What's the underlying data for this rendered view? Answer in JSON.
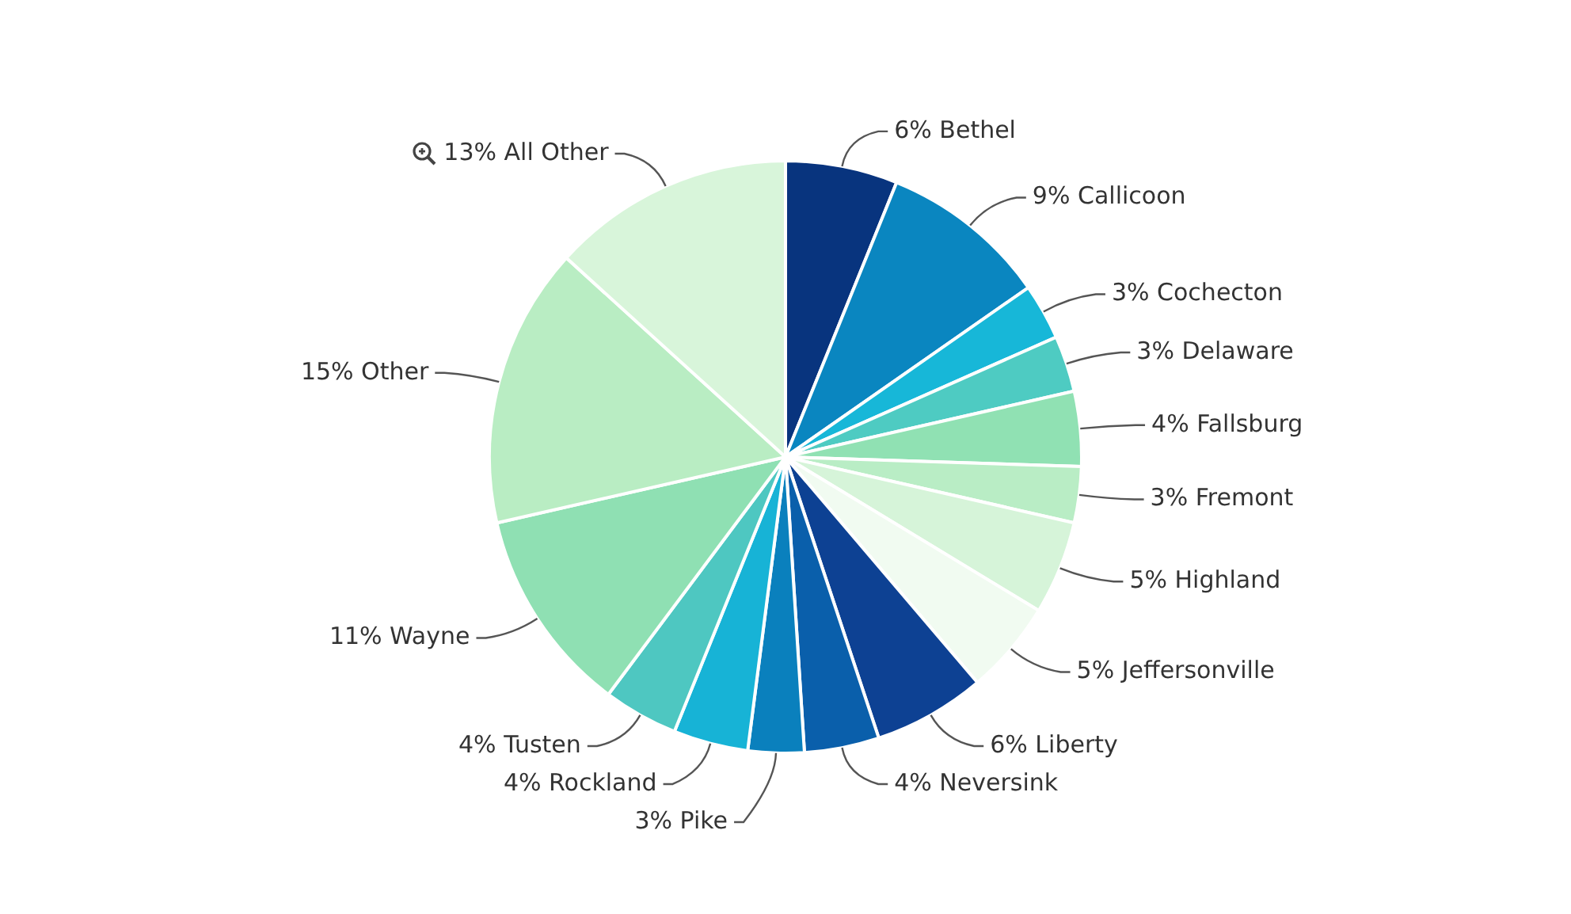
{
  "chart_data": {
    "type": "pie",
    "categories": [
      "Bethel",
      "Callicoon",
      "Cochecton",
      "Delaware",
      "Fallsburg",
      "Fremont",
      "Highland",
      "Jeffersonville",
      "Liberty",
      "Neversink",
      "Pike",
      "Rockland",
      "Tusten",
      "Wayne",
      "Other",
      "All Other"
    ],
    "values": [
      6,
      9,
      3,
      3,
      4,
      3,
      5,
      5,
      6,
      4,
      3,
      4,
      4,
      11,
      15,
      13
    ],
    "value_labels": [
      "6%",
      "9%",
      "3%",
      "3%",
      "4%",
      "3%",
      "5%",
      "5%",
      "6%",
      "4%",
      "3%",
      "4%",
      "4%",
      "11%",
      "15%",
      "13%"
    ],
    "colors": [
      "#08347e",
      "#0a86c0",
      "#17b7d8",
      "#4ecbc2",
      "#90e1b3",
      "#b9edc5",
      "#d6f4d9",
      "#f1fbf1",
      "#0d4193",
      "#0a5fab",
      "#0a80bd",
      "#17b3d6",
      "#4ec7c1",
      "#8fe0b3",
      "#b9edc3",
      "#d8f5da"
    ],
    "legend": false
  }
}
